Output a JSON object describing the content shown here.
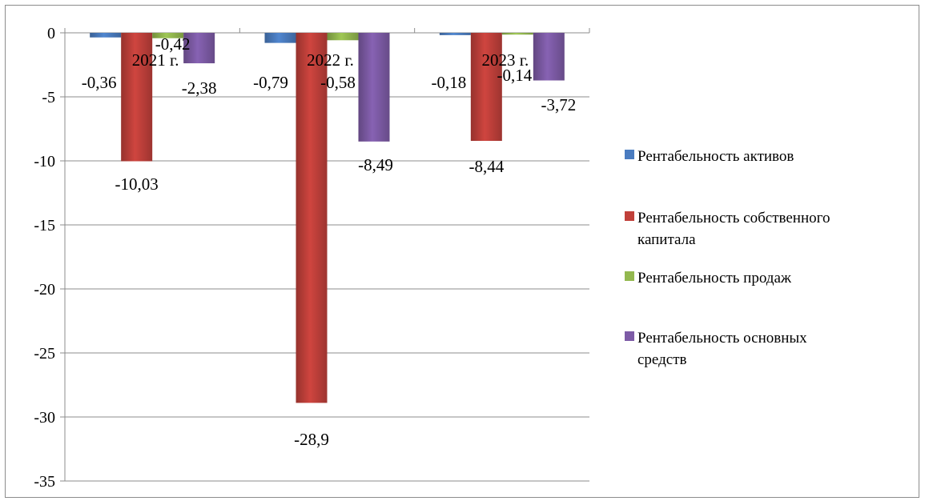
{
  "chart_data": {
    "type": "bar",
    "title": "",
    "xlabel": "",
    "ylabel": "",
    "categories": [
      "2021 г.",
      "2022 г.",
      "2023 г."
    ],
    "ylim": [
      -35,
      0
    ],
    "yticks": [
      0,
      -5,
      -10,
      -15,
      -20,
      -25,
      -30,
      -35
    ],
    "ytick_labels": [
      "0",
      "-5",
      "-10",
      "-15",
      "-20",
      "-25",
      "-30",
      "-35"
    ],
    "grid": true,
    "legend_position": "right",
    "series": [
      {
        "name": "Рентабельность активов",
        "color": "#4a7cc0",
        "values": [
          -0.36,
          -0.79,
          -0.18
        ],
        "labels": [
          "-0,36",
          "-0,79",
          "-0,18"
        ]
      },
      {
        "name": "Рентабельность собственного капитала",
        "color": "#c0403a",
        "values": [
          -10.03,
          -28.9,
          -8.44
        ],
        "labels": [
          "-10,03",
          "-28,9",
          "-8,44"
        ]
      },
      {
        "name": "Рентабельность продаж",
        "color": "#93b84f",
        "values": [
          -0.42,
          -0.58,
          -0.14
        ],
        "labels": [
          "-0,42",
          "-0,58",
          "-0,14"
        ]
      },
      {
        "name": "Рентабельность основных средств",
        "color": "#7d5ba6",
        "values": [
          -2.38,
          -8.49,
          -3.72
        ],
        "labels": [
          "-2,38",
          "-8,49",
          "-3,72"
        ]
      }
    ]
  }
}
